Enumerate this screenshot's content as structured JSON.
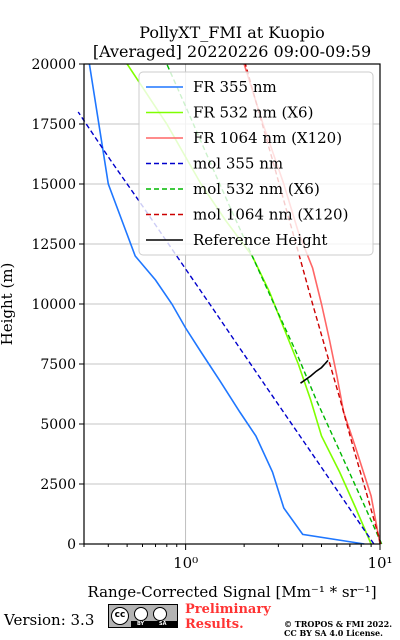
{
  "chart_data": {
    "type": "line",
    "title_line1": "PollyXT_FMI at Kuopio",
    "title_line2": "[Averaged] 20220226 09:00-09:59",
    "xlabel": "Range-Corrected Signal [Mm⁻¹ * sr⁻¹]",
    "ylabel": "Height (m)",
    "xscale": "log",
    "xlim": [
      0.3,
      10
    ],
    "ylim": [
      0,
      20000
    ],
    "y_ticks": [
      "0",
      "2500",
      "5000",
      "7500",
      "10000",
      "12500",
      "15000",
      "17500",
      "20000"
    ],
    "x_ticks": [
      "10⁰",
      "10¹"
    ],
    "grid": true,
    "legend_placement": "top-right",
    "series": [
      {
        "name": "FR 355 nm",
        "color": "#1f77ff",
        "style": "solid",
        "x": [
          8.3,
          4.0,
          3.2,
          2.8,
          2.3,
          1.9,
          1.5,
          1.2,
          1.0,
          0.85,
          0.7,
          0.55,
          0.4,
          0.32
        ],
        "y": [
          0,
          400,
          1500,
          3000,
          4500,
          5500,
          6800,
          8000,
          9000,
          10000,
          11000,
          12000,
          15000,
          20000
        ]
      },
      {
        "name": "FR 532 nm (X6)",
        "color": "#7fff00",
        "style": "solid",
        "x": [
          9.0,
          7.5,
          6.2,
          5.0,
          4.4,
          3.8,
          3.2,
          2.7,
          2.2,
          1.6,
          1.2,
          0.8,
          0.5
        ],
        "y": [
          0,
          1500,
          3000,
          4500,
          6000,
          7500,
          9000,
          10500,
          12000,
          13500,
          15000,
          17500,
          20000
        ]
      },
      {
        "name": "FR 1064 nm (X120)",
        "color": "#ff6666",
        "style": "solid",
        "x": [
          10.0,
          9.0,
          7.5,
          6.5,
          6.0,
          5.5,
          5.0,
          4.5,
          3.8,
          3.2,
          2.5,
          2.0
        ],
        "y": [
          0,
          2000,
          4000,
          5500,
          7000,
          8500,
          10000,
          11500,
          13000,
          15000,
          17500,
          20000
        ]
      },
      {
        "name": "mol 355 nm",
        "color": "#0000cc",
        "style": "dashed",
        "x": [
          9.3,
          6.3,
          4.27,
          2.89,
          1.96,
          1.33,
          0.9,
          0.61,
          0.41,
          0.28
        ],
        "y": [
          0,
          2000,
          4000,
          6000,
          8000,
          10000,
          12000,
          14000,
          16000,
          18000
        ]
      },
      {
        "name": "mol 532 nm (X6)",
        "color": "#00b800",
        "style": "dashed",
        "x": [
          10.2,
          7.9,
          6.1,
          4.7,
          3.7,
          2.85,
          2.2,
          1.7,
          1.32,
          1.03,
          0.8
        ],
        "y": [
          0,
          2000,
          4000,
          6000,
          8000,
          10000,
          12000,
          14000,
          16000,
          18000,
          20000
        ]
      },
      {
        "name": "mol 1064 nm (X120)",
        "color": "#cc0000",
        "style": "dashed",
        "x": [
          10.1,
          8.6,
          7.3,
          6.25,
          5.3,
          4.5,
          3.85,
          3.28,
          2.8,
          2.38,
          2.03
        ],
        "y": [
          0,
          2000,
          4000,
          6000,
          8000,
          10000,
          12000,
          14000,
          16000,
          18000,
          20000
        ]
      },
      {
        "name": "Reference Height",
        "color": "#000000",
        "style": "solid",
        "x": [
          3.9,
          4.4,
          4.7,
          5.0,
          5.2,
          5.4
        ],
        "y": [
          6700,
          7000,
          7200,
          7350,
          7500,
          7650
        ]
      }
    ]
  },
  "footer": {
    "version": "Version: 3.3",
    "cc_label": "cc",
    "by_label": "BY",
    "sa_label": "SA",
    "preliminary_line1": "Preliminary",
    "preliminary_line2": "Results.",
    "copyright_line1": "© TROPOS & FMI 2022.",
    "copyright_line2": "CC BY SA 4.0 License."
  }
}
